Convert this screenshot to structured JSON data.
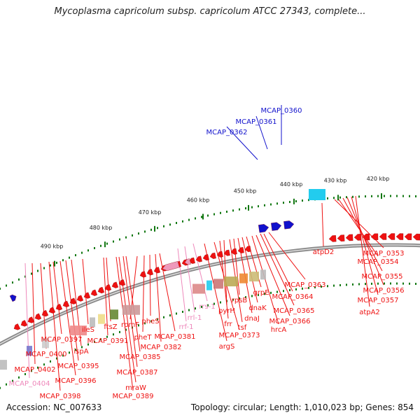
{
  "title": "Mycoplasma capricolum subsp. capricolum ATCC 27343, complete...",
  "accession": "Accession: NC_007633",
  "stats": "Topology: circular; Length: 1,010,023 bp; Genes: 854",
  "colors": {
    "gene_red": "#ee1111",
    "rna_pink": "#ee99bb",
    "blue": "#1111cc",
    "cyan": "#22ccee",
    "backbone": "#888888",
    "tick_green": "#117711"
  },
  "scale_labels": [
    "420 kbp",
    "430 kbp",
    "440 kbp",
    "450 kbp",
    "460 kbp",
    "470 kbp",
    "480 kbp",
    "490 kbp"
  ],
  "blue_labels": [
    "MCAP_0360",
    "MCAP_0361",
    "MCAP_0362"
  ],
  "red_labels": [
    "atpD2",
    "MCAP_0353",
    "MCAP_0354",
    "MCAP_0355",
    "MCAP_0356",
    "MCAP_0357",
    "atpA2",
    "MCAP_0363",
    "MCAP_0364",
    "MCAP_0365",
    "MCAP_0366",
    "hrcA",
    "grpE",
    "dnaK",
    "dnaJ",
    "rpsB",
    "tsf",
    "pyrH",
    "frr",
    "MCAP_0373",
    "argS",
    "MCAP_0381",
    "MCAP_0382",
    "pheS",
    "pheT",
    "rpmF",
    "ftsZ",
    "MCAP_0385",
    "MCAP_0387",
    "mraW",
    "MCAP_0389",
    "MCAP_0391",
    "ileS",
    "ispA",
    "MCAP_0395",
    "MCAP_0396",
    "MCAP_0397",
    "MCAP_0398",
    "MCAP_0400",
    "MCAP_0402"
  ],
  "pink_labels": [
    "rrs-1",
    "rrl-1",
    "rrf-1",
    "MCAP_0404"
  ]
}
